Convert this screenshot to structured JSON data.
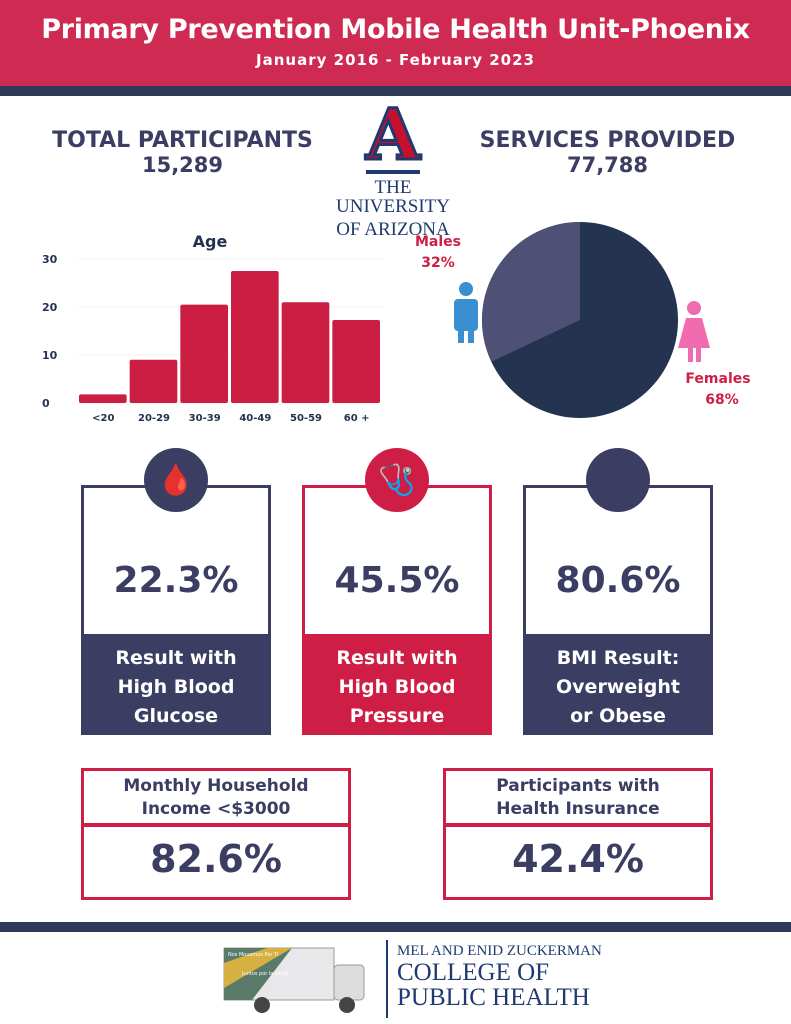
{
  "header": {
    "title": "Primary Prevention Mobile Health Unit-Phoenix",
    "subtitle": "January 2016 - February 2023"
  },
  "stats": {
    "participants_label": "TOTAL PARTICIPANTS",
    "participants_value": "15,289",
    "services_label": "SERVICES PROVIDED",
    "services_value": "77,788"
  },
  "logo": {
    "letter": "A",
    "line1": "THE UNIVERSITY",
    "line2": "OF ARIZONA"
  },
  "chart_data": [
    {
      "type": "bar",
      "title": "Age",
      "categories": [
        "<20",
        "20-29",
        "30-39",
        "40-49",
        "50-59",
        "60 +"
      ],
      "values": [
        1.8,
        9,
        20.5,
        27.5,
        21,
        17.3
      ],
      "ylim": [
        0,
        30
      ],
      "yticks": [
        "0",
        "10",
        "20",
        "30"
      ],
      "color": "#cc1d42"
    },
    {
      "type": "pie",
      "labels": [
        "Males",
        "Females"
      ],
      "values": [
        32,
        68
      ],
      "value_labels": [
        "32%",
        "68%"
      ],
      "colors": [
        "#4f5075",
        "#233350"
      ]
    }
  ],
  "cards": [
    {
      "value": "22.3%",
      "label_lines": [
        "Result with",
        "High Blood",
        "Glucose"
      ],
      "icon": "glucose-meter-icon"
    },
    {
      "value": "45.5%",
      "label_lines": [
        "Result with",
        "High Blood",
        "Pressure"
      ],
      "icon": "blood-pressure-monitor-icon"
    },
    {
      "value": "80.6%",
      "label_lines": [
        "BMI Result:",
        "Overweight",
        "or Obese"
      ],
      "icon": "scale-icon"
    }
  ],
  "boxes": [
    {
      "title_lines": [
        "Monthly Household",
        "Income <$3000"
      ],
      "value": "82.6%"
    },
    {
      "title_lines": [
        "Participants with",
        "Health Insurance"
      ],
      "value": "42.4%"
    }
  ],
  "footer": {
    "line1": "MEL AND ENID ZUCKERMAN",
    "line2": "COLLEGE OF",
    "line3": "PUBLIC HEALTH",
    "truck_text1": "Nos Movemos Por Ti",
    "truck_text2": "Juntos por la salud"
  }
}
